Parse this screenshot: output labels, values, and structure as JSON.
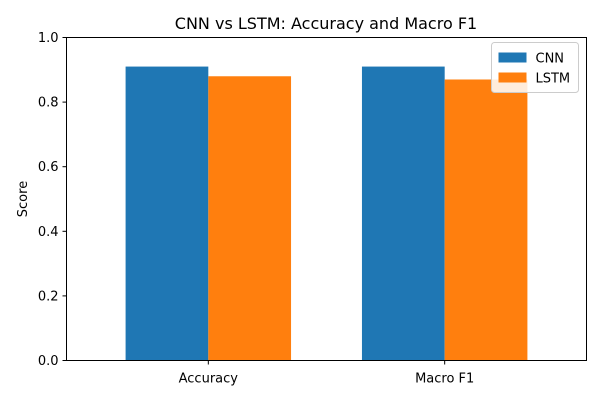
{
  "chart_data": {
    "type": "bar",
    "title": "CNN vs LSTM: Accuracy and Macro F1",
    "xlabel": "",
    "ylabel": "Score",
    "categories": [
      "Accuracy",
      "Macro F1"
    ],
    "series": [
      {
        "name": "CNN",
        "values": [
          0.91,
          0.91
        ],
        "color": "#1f77b4"
      },
      {
        "name": "LSTM",
        "values": [
          0.88,
          0.87
        ],
        "color": "#ff7f0e"
      }
    ],
    "ylim": [
      0,
      1.0
    ],
    "yticks": [
      "0.0",
      "0.2",
      "0.4",
      "0.6",
      "0.8",
      "1.0"
    ],
    "grid": false,
    "legend_position": "top-right"
  }
}
